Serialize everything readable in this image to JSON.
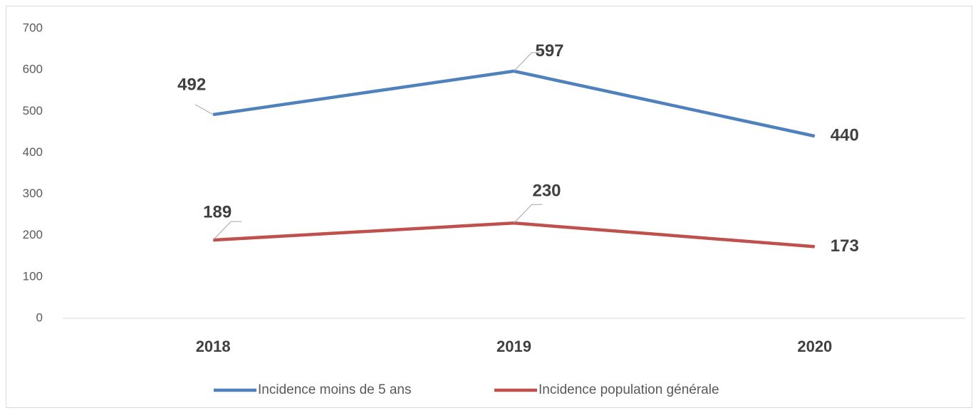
{
  "chart_data": {
    "type": "line",
    "categories": [
      "2018",
      "2019",
      "2020"
    ],
    "series": [
      {
        "name": "Incidence moins de 5 ans",
        "color": "#4f81bd",
        "values": [
          492,
          597,
          440
        ]
      },
      {
        "name": "Incidence population générale",
        "color": "#c0504d",
        "values": [
          189,
          230,
          173
        ]
      }
    ],
    "ylim": [
      0,
      700
    ],
    "yticks": [
      0,
      100,
      200,
      300,
      400,
      500,
      600,
      700
    ],
    "grid": false,
    "legend": "bottom"
  }
}
